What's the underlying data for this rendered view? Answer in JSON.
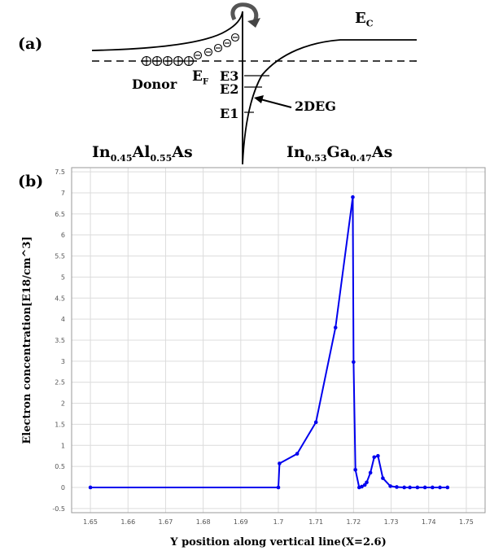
{
  "panel_a": {
    "label": "(a)",
    "ec_label": "E",
    "ec_sub": "C",
    "ef_label": "E",
    "ef_sub": "F",
    "donor_label": "Donor",
    "levels": [
      "E3",
      "E2",
      "E1"
    ],
    "twodeg_label": "2DEG",
    "material_left": {
      "base1": "In",
      "sub1": "0.45",
      "base2": "Al",
      "sub2": "0.55",
      "base3": "As"
    },
    "material_right": {
      "base1": "In",
      "sub1": "0.53",
      "base2": "Ga",
      "sub2": "0.47",
      "base3": "As"
    }
  },
  "panel_b": {
    "label": "(b)"
  },
  "chart_data": {
    "type": "line",
    "title": "",
    "xlabel": "Y position along vertical line(X=2.6)",
    "ylabel": "Electron concentration[E18/cm^3]",
    "xlim": [
      1.645,
      1.755
    ],
    "ylim": [
      -0.6,
      7.6
    ],
    "xticks": [
      1.65,
      1.66,
      1.67,
      1.68,
      1.69,
      1.7,
      1.71,
      1.72,
      1.73,
      1.74,
      1.75
    ],
    "xtick_labels": [
      "1.65",
      "1.66",
      "1.67",
      "1.68",
      "1.69",
      "1.7",
      "1.71",
      "1.72",
      "1.73",
      "1.74",
      "1.75"
    ],
    "yticks": [
      -0.5,
      0,
      0.5,
      1,
      1.5,
      2,
      2.5,
      3,
      3.5,
      4,
      4.5,
      5,
      5.5,
      6,
      6.5,
      7,
      7.5
    ],
    "ytick_labels": [
      "-0.5",
      "0",
      "0.5",
      "1",
      "1.5",
      "2",
      "2.5",
      "3",
      "3.5",
      "4",
      "4.5",
      "5",
      "5.5",
      "6",
      "6.5",
      "7",
      "7.5"
    ],
    "grid": true,
    "color": "#0000ee",
    "series": [
      {
        "x": [
          1.65,
          1.7,
          1.7003,
          1.705,
          1.71,
          1.7152,
          1.7198,
          1.72,
          1.7205,
          1.7215,
          1.7222,
          1.723,
          1.7235,
          1.7245,
          1.7255,
          1.7265,
          1.7278,
          1.7298,
          1.7315,
          1.7335,
          1.735,
          1.737,
          1.739,
          1.741,
          1.743,
          1.745
        ],
        "y": [
          0,
          0,
          0.57,
          0.8,
          1.55,
          3.8,
          6.9,
          2.98,
          0.42,
          0.0,
          0.02,
          0.06,
          0.12,
          0.35,
          0.72,
          0.75,
          0.22,
          0.03,
          0.01,
          0,
          0,
          0,
          0,
          0,
          0,
          0
        ]
      }
    ]
  }
}
